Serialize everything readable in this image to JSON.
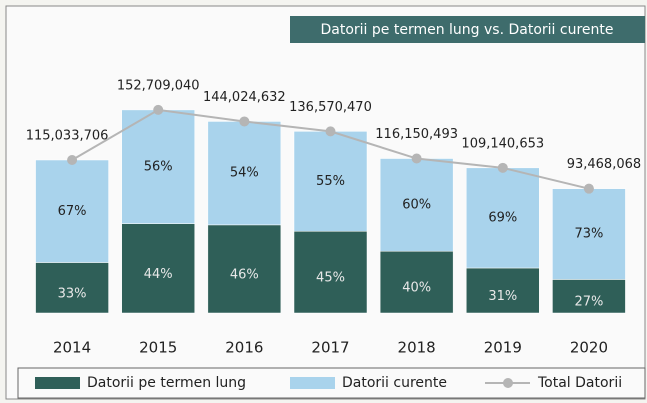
{
  "chart_data": {
    "type": "bar",
    "stacked": true,
    "title": "Datorii pe termen lung vs. Datorii curente",
    "categories": [
      "2014",
      "2015",
      "2016",
      "2017",
      "2018",
      "2019",
      "2020"
    ],
    "series": [
      {
        "name": "Datorii pe termen lung",
        "color": "#2f5f58",
        "values": [
          33,
          44,
          46,
          45,
          40,
          31,
          27
        ],
        "value_labels": [
          "33%",
          "44%",
          "46%",
          "45%",
          "40%",
          "31%",
          "27%"
        ]
      },
      {
        "name": "Datorii curente",
        "color": "#a9d3ec",
        "values": [
          67,
          56,
          54,
          55,
          60,
          69,
          73
        ],
        "value_labels": [
          "67%",
          "56%",
          "54%",
          "55%",
          "60%",
          "69%",
          "73%"
        ]
      },
      {
        "name": "Total Datorii",
        "type": "line",
        "color": "#b5b5b5",
        "values": [
          115033706,
          152709040,
          144024632,
          136570470,
          116150493,
          109140653,
          93468068
        ],
        "value_labels": [
          "115,033,706",
          "152,709,040",
          "144,024,632",
          "136,570,470",
          "116,150,493",
          "109,140,653",
          "93,468,068"
        ]
      }
    ],
    "ylim": [
      0,
      200000000
    ]
  }
}
